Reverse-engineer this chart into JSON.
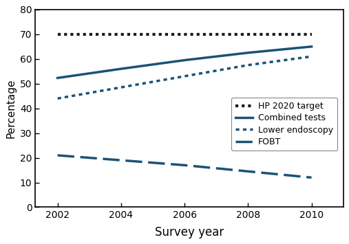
{
  "years": [
    2002,
    2004,
    2006,
    2008,
    2010
  ],
  "hp2020_target": [
    70,
    70,
    70,
    70,
    70
  ],
  "combined_tests": [
    52.3,
    56.0,
    59.5,
    62.5,
    65.0
  ],
  "lower_endoscopy": [
    44.0,
    48.5,
    53.0,
    57.5,
    61.0
  ],
  "fobt": [
    21.0,
    19.0,
    17.0,
    14.5,
    12.0
  ],
  "hp2020_color": "#1a1a1a",
  "blue_color": "#1a5276",
  "ylabel": "Percentage",
  "xlabel": "Survey year",
  "ylim": [
    0,
    80
  ],
  "yticks": [
    0,
    10,
    20,
    30,
    40,
    50,
    60,
    70,
    80
  ],
  "xticks": [
    2002,
    2004,
    2006,
    2008,
    2010
  ],
  "legend_labels": [
    "HP 2020 target",
    "Combined tests",
    "Lower endoscopy",
    "FOBT"
  ]
}
